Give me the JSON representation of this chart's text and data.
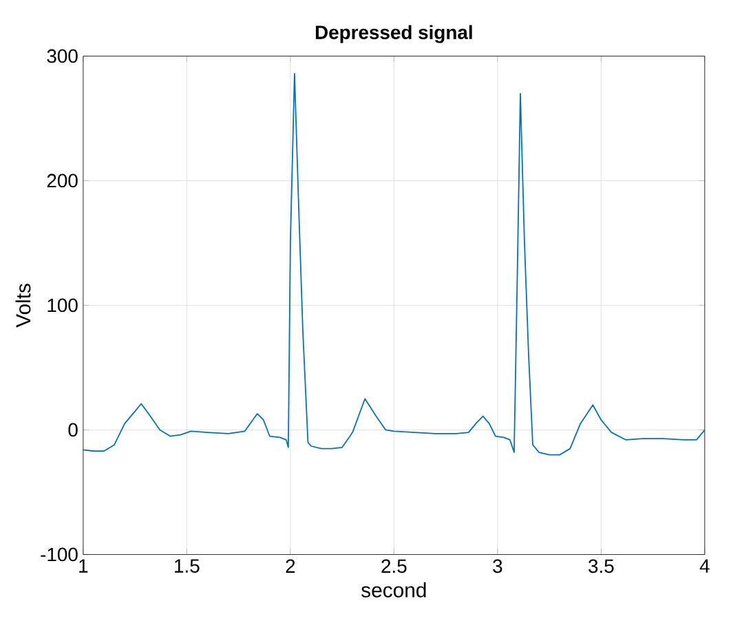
{
  "chart_data": {
    "type": "line",
    "title": "Depressed signal",
    "xlabel": "second",
    "ylabel": "Volts",
    "xlim": [
      1,
      4
    ],
    "ylim": [
      -100,
      300
    ],
    "xticks": [
      1,
      1.5,
      2,
      2.5,
      3,
      3.5,
      4
    ],
    "yticks": [
      -100,
      0,
      100,
      200,
      300
    ],
    "grid": true,
    "series": [
      {
        "color": "#0072bd",
        "x": [
          1,
          1.05,
          1.1,
          1.15,
          1.2,
          1.25,
          1.28,
          1.32,
          1.37,
          1.42,
          1.47,
          1.52,
          1.6,
          1.7,
          1.78,
          1.81,
          1.84,
          1.87,
          1.9,
          1.95,
          1.98,
          1.99,
          2.0,
          2.02,
          2.04,
          2.06,
          2.085,
          2.1,
          2.15,
          2.2,
          2.25,
          2.3,
          2.36,
          2.41,
          2.46,
          2.5,
          2.6,
          2.7,
          2.8,
          2.86,
          2.9,
          2.93,
          2.96,
          2.99,
          3.03,
          3.06,
          3.08,
          3.095,
          3.11,
          3.13,
          3.15,
          3.17,
          3.2,
          3.25,
          3.3,
          3.35,
          3.4,
          3.46,
          3.5,
          3.55,
          3.62,
          3.7,
          3.8,
          3.9,
          3.96,
          4
        ],
        "values": [
          -16,
          -17,
          -17,
          -12,
          5,
          15,
          21,
          12,
          0,
          -5,
          -4,
          -1,
          -2,
          -3,
          -1,
          6,
          13,
          8,
          -5,
          -6,
          -8,
          -14,
          150,
          286,
          180,
          80,
          -10,
          -13,
          -15,
          -15,
          -14,
          -2,
          25,
          12,
          0,
          -1,
          -2,
          -3,
          -3,
          -2,
          6,
          11,
          5,
          -5,
          -6,
          -8,
          -18,
          120,
          270,
          150,
          60,
          -12,
          -18,
          -20,
          -20,
          -15,
          5,
          20,
          8,
          -2,
          -8,
          -7,
          -7,
          -8,
          -8,
          0
        ]
      }
    ]
  }
}
